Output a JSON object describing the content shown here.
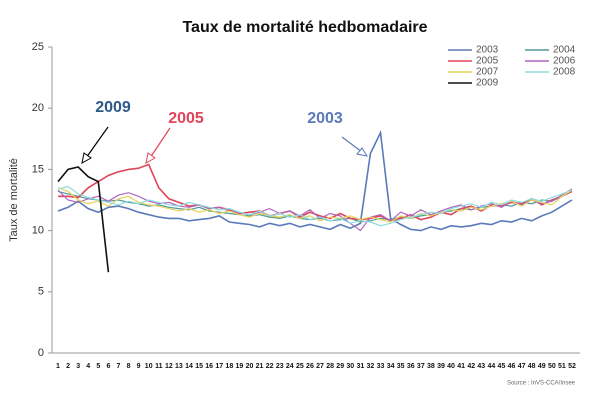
{
  "chart_data": {
    "type": "line",
    "title": "Taux de mortalité hedbomadaire",
    "y_label": "Taux de mortalité",
    "source": "Source : InVS-CCA/Insee",
    "annotations": [
      "2009",
      "2005",
      "2003"
    ],
    "categories": [
      "1",
      "2",
      "3",
      "4",
      "5",
      "6",
      "7",
      "8",
      "9",
      "10",
      "11",
      "12",
      "13",
      "14",
      "15",
      "16",
      "17",
      "18",
      "19",
      "20",
      "21",
      "22",
      "23",
      "24",
      "25",
      "26",
      "27",
      "28",
      "29",
      "30",
      "31",
      "32",
      "33",
      "34",
      "35",
      "36",
      "37",
      "38",
      "39",
      "40",
      "41",
      "42",
      "43",
      "44",
      "45",
      "46",
      "47",
      "48",
      "49",
      "50",
      "51",
      "52"
    ],
    "ylim": [
      0,
      25
    ],
    "yticks": [
      0,
      5,
      10,
      15,
      20,
      25
    ],
    "series": [
      {
        "name": "2003",
        "color": "#5b7ab8",
        "values": [
          11.6,
          11.9,
          12.4,
          11.8,
          11.5,
          11.9,
          12,
          11.8,
          11.5,
          11.3,
          11.1,
          11,
          11,
          10.8,
          10.9,
          11,
          11.2,
          10.7,
          10.6,
          10.5,
          10.3,
          10.6,
          10.4,
          10.6,
          10.3,
          10.5,
          10.3,
          10.1,
          10.5,
          10.2,
          10.6,
          16.3,
          18,
          11,
          10.5,
          10.1,
          10,
          10.3,
          10.1,
          10.4,
          10.3,
          10.4,
          10.6,
          10.5,
          10.8,
          10.7,
          11,
          10.8,
          11.2,
          11.5,
          12,
          12.5
        ]
      },
      {
        "name": "2004",
        "color": "#4f9a9a",
        "values": [
          13.2,
          13,
          12.8,
          12.6,
          12.5,
          12.4,
          12.5,
          12.3,
          12.2,
          12,
          12.1,
          11.9,
          11.8,
          11.7,
          11.9,
          11.6,
          11.5,
          11.4,
          11.3,
          11.2,
          11.3,
          11.1,
          11,
          11.2,
          11,
          10.9,
          11,
          10.8,
          10.9,
          11,
          10.7,
          10.8,
          11,
          10.9,
          11.1,
          11,
          11.2,
          11.3,
          11.5,
          11.6,
          11.8,
          11.7,
          11.9,
          12,
          12.1,
          12,
          12.3,
          12.2,
          12.5,
          12.4,
          12.8,
          13.2
        ]
      },
      {
        "name": "2005",
        "color": "#e0455a",
        "values": [
          12.8,
          12.8,
          12.7,
          13.5,
          14,
          14.5,
          14.8,
          15,
          15.1,
          15.4,
          13.5,
          12.6,
          12.3,
          12,
          12.1,
          11.8,
          11.9,
          11.7,
          11.4,
          11.5,
          11.6,
          11.2,
          11.4,
          11.6,
          11.1,
          11.5,
          11.2,
          11,
          11.4,
          11,
          10.9,
          11,
          11.2,
          10.8,
          11,
          11.3,
          10.9,
          11.1,
          11.5,
          11.3,
          11.8,
          12,
          11.6,
          12.1,
          12,
          12.3,
          12.2,
          12.6,
          12.1,
          12.5,
          12.8,
          13.2
        ]
      },
      {
        "name": "2006",
        "color": "#b065c0",
        "values": [
          13.3,
          12.5,
          12.3,
          12.6,
          12.8,
          12.4,
          12.9,
          13.1,
          12.8,
          12.4,
          12.2,
          12.3,
          12,
          11.9,
          12.1,
          11.8,
          11.9,
          11.6,
          11.5,
          11.3,
          11.5,
          11.8,
          11.4,
          11.6,
          11.2,
          11.7,
          11,
          11.4,
          11.2,
          10.6,
          10,
          11.1,
          11.3,
          10.8,
          11.5,
          11.2,
          11.7,
          11.3,
          11.6,
          11.9,
          12.1,
          11.7,
          12,
          12.2,
          11.9,
          12.4,
          12.1,
          12.5,
          12.2,
          12.4,
          12.9,
          13.4
        ]
      },
      {
        "name": "2007",
        "color": "#e6d35a",
        "values": [
          13.5,
          13.2,
          12.5,
          12.2,
          12.4,
          12,
          12.6,
          12.8,
          12.3,
          12.1,
          12,
          11.8,
          11.6,
          11.8,
          11.5,
          11.7,
          11.4,
          11.6,
          11.3,
          11.1,
          11.4,
          11.2,
          11.1,
          11.3,
          11,
          11.2,
          10.8,
          11.1,
          11,
          11.2,
          10.9,
          11.1,
          10.9,
          10.7,
          11.2,
          11,
          11.4,
          11.2,
          11.5,
          11.7,
          11.6,
          11.9,
          11.7,
          12,
          12.2,
          12.4,
          12,
          12.5,
          12.3,
          12.1,
          12.8,
          13.3
        ]
      },
      {
        "name": "2008",
        "color": "#8fdcdc",
        "values": [
          13.4,
          13.6,
          13,
          12.7,
          12.5,
          12.3,
          12.1,
          12.4,
          12.2,
          12.5,
          12.3,
          12.1,
          12,
          12.3,
          12.1,
          11.9,
          11.7,
          11.8,
          11.5,
          11.3,
          11.6,
          11.2,
          11.4,
          11.1,
          11.3,
          10.9,
          11.1,
          10.8,
          11,
          10.6,
          10.8,
          10.7,
          10.4,
          10.6,
          10.9,
          11.1,
          11.3,
          11.5,
          11.4,
          11.8,
          12,
          12.2,
          11.9,
          12.3,
          12.1,
          12.5,
          12.3,
          12.6,
          12.4,
          12.7,
          13,
          13.3
        ]
      },
      {
        "name": "2009",
        "color": "#111111",
        "values": [
          14,
          15,
          15.2,
          14.4,
          14,
          6.6,
          null,
          null,
          null,
          null,
          null,
          null,
          null,
          null,
          null,
          null,
          null,
          null,
          null,
          null,
          null,
          null,
          null,
          null,
          null,
          null,
          null,
          null,
          null,
          null,
          null,
          null,
          null,
          null,
          null,
          null,
          null,
          null,
          null,
          null,
          null,
          null,
          null,
          null,
          null,
          null,
          null,
          null,
          null,
          null,
          null,
          null
        ]
      }
    ]
  }
}
